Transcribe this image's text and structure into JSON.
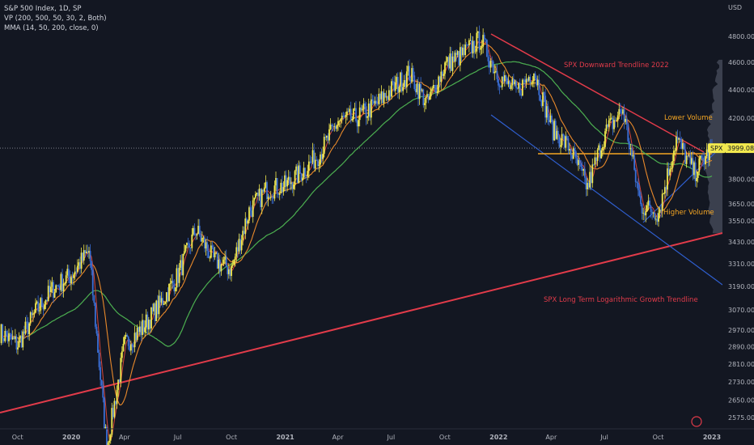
{
  "legend": {
    "line1": "S&P 500 Index, 1D, SP",
    "line2": "VP (200, 500, 50, 30, 2, Both)",
    "line3": "MMA (14, 50, 200, close, 0)"
  },
  "price_axis": {
    "currency": "USD",
    "ticks": [
      "4800.00",
      "4600.00",
      "4400.00",
      "4200.00",
      "3800.00",
      "3650.00",
      "3550.00",
      "3430.00",
      "3310.00",
      "3190.00",
      "3070.00",
      "2970.00",
      "2890.00",
      "2810.00",
      "2730.00",
      "2650.00",
      "2575.00"
    ],
    "current_symbol": "SPX",
    "current_price": "3999.08"
  },
  "time_axis": [
    "Oct",
    "2020",
    "Apr",
    "Jul",
    "Oct",
    "2021",
    "Apr",
    "Jul",
    "Oct",
    "2022",
    "Apr",
    "Jul",
    "Oct",
    "2023"
  ],
  "annotations": {
    "downtrend": "SPX Downward Trendline 2022",
    "lower_volume": "Lower Volume",
    "higher_volume": "Higher Volume",
    "long_term": "SPX Long Term Logarithmic Growth Trendline"
  },
  "colors": {
    "background": "#131722",
    "up": "#f2e94e",
    "down": "#3b6fd6",
    "ma14": "#d6453a",
    "ma50": "#e8892b",
    "ma200": "#4caf50",
    "trend_red": "#e23b4a",
    "trend_blue": "#2f5fd0",
    "support_orange": "#f5a623",
    "price_label_bg": "#f2e94e"
  },
  "chart_data": {
    "type": "line",
    "title": "S&P 500 Index, 1D, SP",
    "xlabel": "",
    "ylabel": "USD",
    "scale": "log",
    "ylim": [
      2540,
      4950
    ],
    "x": [
      "2019-09",
      "2019-10",
      "2019-11",
      "2019-12",
      "2020-01",
      "2020-02",
      "2020-03",
      "2020-04",
      "2020-05",
      "2020-06",
      "2020-07",
      "2020-08",
      "2020-09",
      "2020-10",
      "2020-11",
      "2020-12",
      "2021-01",
      "2021-02",
      "2021-03",
      "2021-04",
      "2021-05",
      "2021-06",
      "2021-07",
      "2021-08",
      "2021-09",
      "2021-10",
      "2021-11",
      "2021-12",
      "2022-01",
      "2022-02",
      "2022-03",
      "2022-04",
      "2022-05",
      "2022-06",
      "2022-07",
      "2022-08",
      "2022-09",
      "2022-10",
      "2022-11",
      "2022-12",
      "2023-01"
    ],
    "series": [
      {
        "name": "S&P 500 Index",
        "values": [
          2960,
          2900,
          3060,
          3180,
          3250,
          3380,
          2450,
          2900,
          2980,
          3100,
          3250,
          3500,
          3330,
          3280,
          3610,
          3740,
          3760,
          3850,
          3970,
          4180,
          4200,
          4280,
          4400,
          4520,
          4300,
          4580,
          4660,
          4780,
          4500,
          4380,
          4540,
          4130,
          4000,
          3750,
          4100,
          4260,
          3640,
          3600,
          4060,
          3840,
          3999
        ]
      }
    ],
    "legend": "top-left",
    "grid": false
  }
}
